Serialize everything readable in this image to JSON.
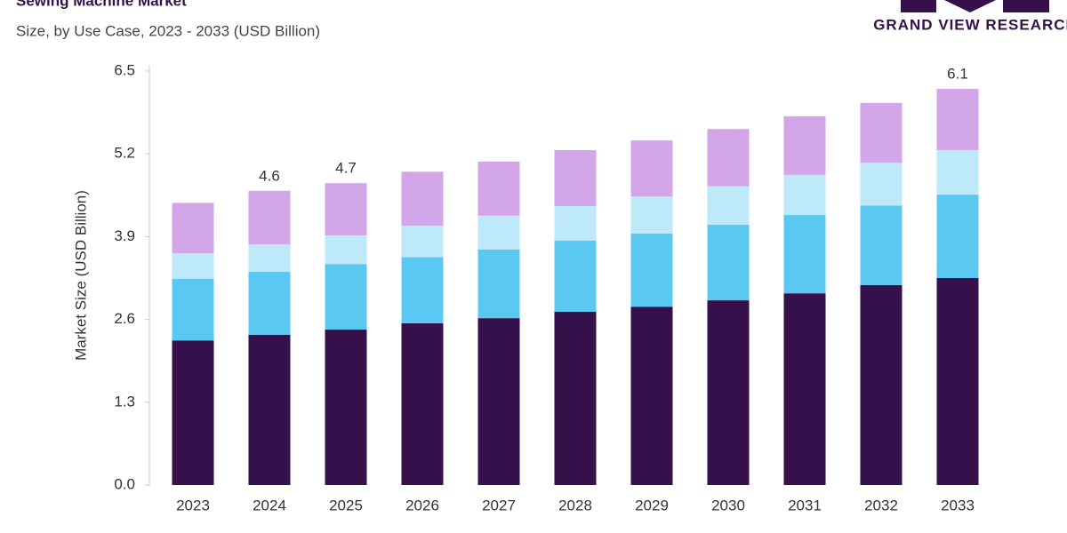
{
  "chart_data": {
    "type": "stacked_bar",
    "title": "Sewing Machine Market",
    "subtitle": "Size, by Use Case, 2023 - 2033 (USD Billion)",
    "brand": "GRAND VIEW RESEARCH",
    "y_label": "Market Size (USD Billion)",
    "categories": [
      "2023",
      "2024",
      "2025",
      "2026",
      "2027",
      "2028",
      "2029",
      "2030",
      "2031",
      "2032",
      "2033"
    ],
    "series": [
      {
        "color": "#35104a",
        "values": [
          2.27,
          2.36,
          2.44,
          2.54,
          2.62,
          2.72,
          2.8,
          2.9,
          3.01,
          3.14,
          3.25
        ]
      },
      {
        "color": "#5bc8f2",
        "values": [
          0.97,
          0.99,
          1.03,
          1.04,
          1.08,
          1.12,
          1.15,
          1.19,
          1.23,
          1.25,
          1.31
        ]
      },
      {
        "color": "#bde9f8",
        "values": [
          0.4,
          0.43,
          0.45,
          0.49,
          0.53,
          0.54,
          0.58,
          0.6,
          0.63,
          0.67,
          0.7
        ]
      },
      {
        "color": "#d3a6ea",
        "values": [
          0.79,
          0.84,
          0.82,
          0.85,
          0.85,
          0.88,
          0.88,
          0.9,
          0.92,
          0.94,
          0.96
        ]
      }
    ],
    "totals": [
      null,
      4.6,
      4.7,
      null,
      null,
      null,
      null,
      null,
      null,
      null,
      6.1
    ],
    "ylim": [
      0,
      6.5
    ],
    "yticks": [
      {
        "value": 0,
        "label": "0.0"
      },
      1.3,
      2.6,
      3.9,
      5.2,
      6.5
    ],
    "grid": false
  }
}
